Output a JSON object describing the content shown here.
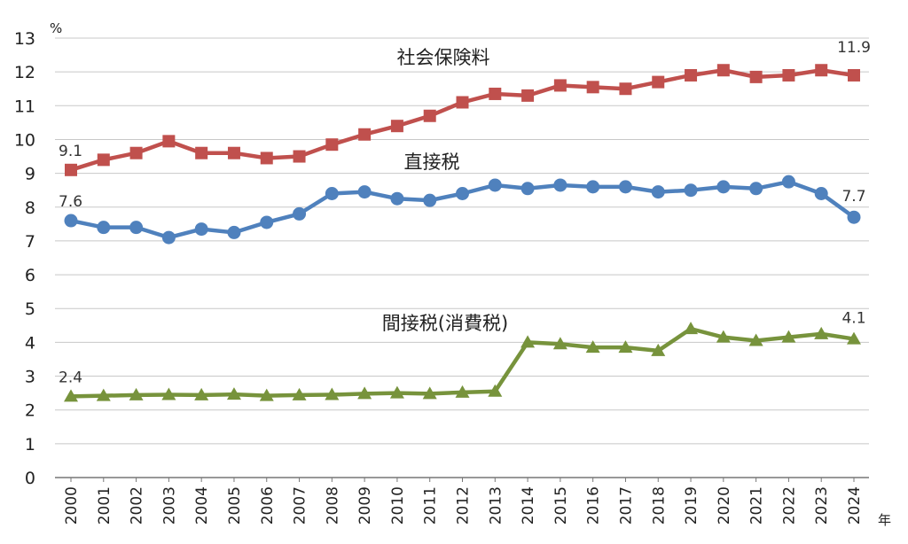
{
  "chart_data": {
    "type": "line",
    "y_unit": "%",
    "x_unit": "年",
    "ylim": [
      0,
      13
    ],
    "yticks": [
      0,
      1,
      2,
      3,
      4,
      5,
      6,
      7,
      8,
      9,
      10,
      11,
      12,
      13
    ],
    "grid": true,
    "categories": [
      "2000",
      "2001",
      "2002",
      "2003",
      "2004",
      "2005",
      "2006",
      "2007",
      "2008",
      "2009",
      "2010",
      "2011",
      "2012",
      "2013",
      "2014",
      "2015",
      "2016",
      "2017",
      "2018",
      "2019",
      "2020",
      "2021",
      "2022",
      "2023",
      "2024"
    ],
    "series": [
      {
        "name": "社会保険料",
        "color": "#c0504d",
        "marker": "square",
        "values": [
          9.1,
          9.4,
          9.6,
          9.95,
          9.6,
          9.6,
          9.45,
          9.5,
          9.85,
          10.15,
          10.4,
          10.7,
          11.1,
          11.35,
          11.3,
          11.6,
          11.55,
          11.5,
          11.7,
          11.9,
          12.05,
          11.85,
          11.9,
          12.05,
          11.9
        ],
        "start_label": "9.1",
        "end_label": "11.9"
      },
      {
        "name": "直接税",
        "color": "#4f81bd",
        "marker": "circle",
        "values": [
          7.6,
          7.4,
          7.4,
          7.1,
          7.35,
          7.25,
          7.55,
          7.8,
          8.4,
          8.45,
          8.25,
          8.2,
          8.4,
          8.65,
          8.55,
          8.65,
          8.6,
          8.6,
          8.45,
          8.5,
          8.6,
          8.55,
          8.75,
          8.4,
          7.7
        ],
        "start_label": "7.6",
        "end_label": "7.7"
      },
      {
        "name": "間接税(消費税)",
        "color": "#77933c",
        "marker": "triangle",
        "values": [
          2.4,
          2.42,
          2.44,
          2.45,
          2.44,
          2.46,
          2.42,
          2.44,
          2.45,
          2.48,
          2.5,
          2.48,
          2.52,
          2.55,
          4.0,
          3.95,
          3.85,
          3.85,
          3.75,
          4.4,
          4.15,
          4.05,
          4.15,
          4.25,
          4.1
        ],
        "start_label": "2.4",
        "end_label": "4.1"
      }
    ]
  }
}
